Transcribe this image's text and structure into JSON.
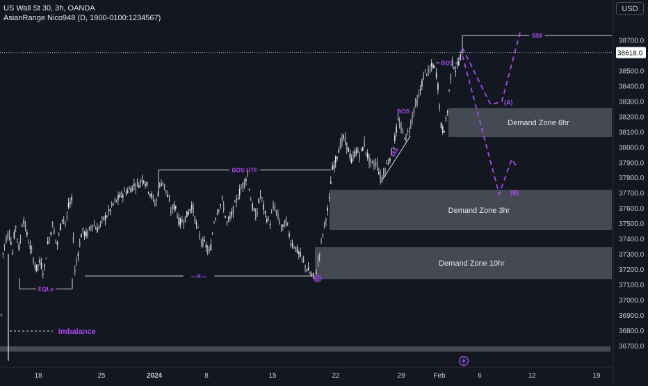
{
  "header": {
    "symbol_line": "US Wall St 30, 3h, OANDA",
    "indicator_line": "AsianRange Nico948 (D, 1900-0100:1234567)"
  },
  "currency_button": "USD",
  "colors": {
    "background": "#131722",
    "candle": "#e8e8e8",
    "zone_fill": "#4b4f59",
    "annotation_purple": "#a64ae8",
    "axis_text": "#c9ccd3",
    "price_label_bg": "#ffffff"
  },
  "chart_data": {
    "type": "candlestick",
    "instrument": "US Wall St 30",
    "timeframe": "3h",
    "source": "OANDA",
    "ylim": [
      36640,
      38780
    ],
    "y_ticks": [
      36700,
      36800,
      36900,
      37000,
      37100,
      37200,
      37300,
      37400,
      37500,
      37600,
      37700,
      37800,
      37900,
      38000,
      38100,
      38200,
      38300,
      38400,
      38500,
      38700
    ],
    "y_tick_labels": [
      "36700.0",
      "36800.0",
      "36900.0",
      "37000.0",
      "37100.0",
      "37200.0",
      "37300.0",
      "37400.0",
      "37500.0",
      "37600.0",
      "37700.0",
      "37800.0",
      "37900.0",
      "38000.0",
      "38100.0",
      "38200.0",
      "38300.0",
      "38400.0",
      "38500.0",
      "38700.0"
    ],
    "x_ticks": [
      "18",
      "25",
      "2024",
      "8",
      "15",
      "22",
      "29",
      "Feb",
      "6",
      "12",
      "19"
    ],
    "current_price": 38618.0,
    "current_price_label": "38618.0",
    "price_path": [
      [
        0,
        36660
      ],
      [
        2,
        36900
      ],
      [
        4,
        37300
      ],
      [
        9,
        37400
      ],
      [
        14,
        37450
      ],
      [
        18,
        37300
      ],
      [
        22,
        37500
      ],
      [
        28,
        37320
      ],
      [
        33,
        37550
      ],
      [
        40,
        37400
      ],
      [
        46,
        37300
      ],
      [
        52,
        37200
      ],
      [
        58,
        37250
      ],
      [
        63,
        37170
      ],
      [
        68,
        37350
      ],
      [
        76,
        37500
      ],
      [
        82,
        37350
      ],
      [
        90,
        37550
      ],
      [
        95,
        37500
      ],
      [
        99,
        37620
      ],
      [
        104,
        37650
      ],
      [
        107,
        37170
      ],
      [
        112,
        37300
      ],
      [
        118,
        37450
      ],
      [
        125,
        37420
      ],
      [
        133,
        37500
      ],
      [
        140,
        37460
      ],
      [
        148,
        37520
      ],
      [
        155,
        37560
      ],
      [
        162,
        37620
      ],
      [
        170,
        37660
      ],
      [
        178,
        37700
      ],
      [
        186,
        37720
      ],
      [
        193,
        37750
      ],
      [
        200,
        37760
      ],
      [
        206,
        37800
      ],
      [
        212,
        37740
      ],
      [
        218,
        37680
      ],
      [
        224,
        37620
      ],
      [
        229,
        37740
      ],
      [
        234,
        37780
      ],
      [
        240,
        37700
      ],
      [
        246,
        37580
      ],
      [
        252,
        37620
      ],
      [
        258,
        37500
      ],
      [
        264,
        37520
      ],
      [
        270,
        37560
      ],
      [
        276,
        37620
      ],
      [
        282,
        37500
      ],
      [
        288,
        37400
      ],
      [
        295,
        37360
      ],
      [
        302,
        37300
      ],
      [
        308,
        37520
      ],
      [
        314,
        37600
      ],
      [
        320,
        37650
      ],
      [
        326,
        37500
      ],
      [
        332,
        37540
      ],
      [
        338,
        37620
      ],
      [
        344,
        37700
      ],
      [
        350,
        37760
      ],
      [
        356,
        37820
      ],
      [
        362,
        37620
      ],
      [
        368,
        37540
      ],
      [
        375,
        37700
      ],
      [
        381,
        37560
      ],
      [
        388,
        37500
      ],
      [
        394,
        37620
      ],
      [
        400,
        37540
      ],
      [
        406,
        37460
      ],
      [
        412,
        37520
      ],
      [
        418,
        37380
      ],
      [
        424,
        37350
      ],
      [
        430,
        37300
      ],
      [
        436,
        37250
      ],
      [
        442,
        37200
      ],
      [
        448,
        37160
      ],
      [
        453,
        37140
      ],
      [
        458,
        37260
      ],
      [
        463,
        37400
      ],
      [
        468,
        37520
      ],
      [
        473,
        37620
      ],
      [
        477,
        37840
      ],
      [
        482,
        37900
      ],
      [
        488,
        38000
      ],
      [
        494,
        38060
      ],
      [
        500,
        38000
      ],
      [
        506,
        37900
      ],
      [
        512,
        37980
      ],
      [
        518,
        37950
      ],
      [
        524,
        38020
      ],
      [
        530,
        37920
      ],
      [
        536,
        37880
      ],
      [
        542,
        37900
      ],
      [
        548,
        37780
      ],
      [
        553,
        37850
      ],
      [
        558,
        37900
      ],
      [
        563,
        37960
      ],
      [
        568,
        38060
      ],
      [
        573,
        38180
      ],
      [
        578,
        38100
      ],
      [
        584,
        38060
      ],
      [
        590,
        38140
      ],
      [
        596,
        38260
      ],
      [
        602,
        38320
      ],
      [
        607,
        38420
      ],
      [
        612,
        38500
      ],
      [
        617,
        38480
      ],
      [
        622,
        38540
      ],
      [
        627,
        38500
      ],
      [
        631,
        38360
      ],
      [
        634,
        38140
      ],
      [
        638,
        38100
      ],
      [
        643,
        38200
      ],
      [
        647,
        38420
      ],
      [
        651,
        38560
      ],
      [
        656,
        38500
      ],
      [
        661,
        38580
      ],
      [
        665,
        38618
      ]
    ],
    "zones": [
      {
        "label": "Demand Zone 6hr",
        "low": 38065,
        "high": 38255,
        "x_start": 645,
        "x_end": 880
      },
      {
        "label": "Demand Zone 3hr",
        "low": 37455,
        "high": 37720,
        "x_start": 474,
        "x_end": 880
      },
      {
        "label": "Demand Zone 10hr",
        "low": 37135,
        "high": 37345,
        "x_start": 453,
        "x_end": 880
      },
      {
        "label": "",
        "low": 36660,
        "high": 36695,
        "x_start": 0,
        "x_end": 878
      }
    ],
    "levels": [
      {
        "label": "BOS HTF",
        "price": 37850,
        "x_start": 228,
        "x_end": 476
      },
      {
        "label": "---X---",
        "price": 37155,
        "x_start": 122,
        "x_end": 450
      },
      {
        "label": "EQLs",
        "price": 37070,
        "x_start": 28,
        "x_end": 104
      },
      {
        "label": "BOS",
        "price": 38550,
        "x_start": 627,
        "x_end": 660
      },
      {
        "label": "$$$",
        "price": 38730,
        "x_start": 665,
        "x_end": 880
      }
    ],
    "annotations": [
      {
        "text": "BOS",
        "color": "purple"
      },
      {
        "text": "$$$",
        "color": "purple"
      },
      {
        "text": "(A)",
        "color": "purple"
      },
      {
        "text": "(B)",
        "color": "purple"
      },
      {
        "text": "Imbalance",
        "color": "purple"
      }
    ],
    "projection_path_A": [
      [
        665,
        38650
      ],
      [
        706,
        38275
      ],
      [
        722,
        38300
      ],
      [
        748,
        38750
      ]
    ],
    "projection_path_B": [
      [
        665,
        38600
      ],
      [
        718,
        37690
      ],
      [
        736,
        37920
      ],
      [
        742,
        37880
      ]
    ],
    "x_label": "",
    "y_label": ""
  }
}
